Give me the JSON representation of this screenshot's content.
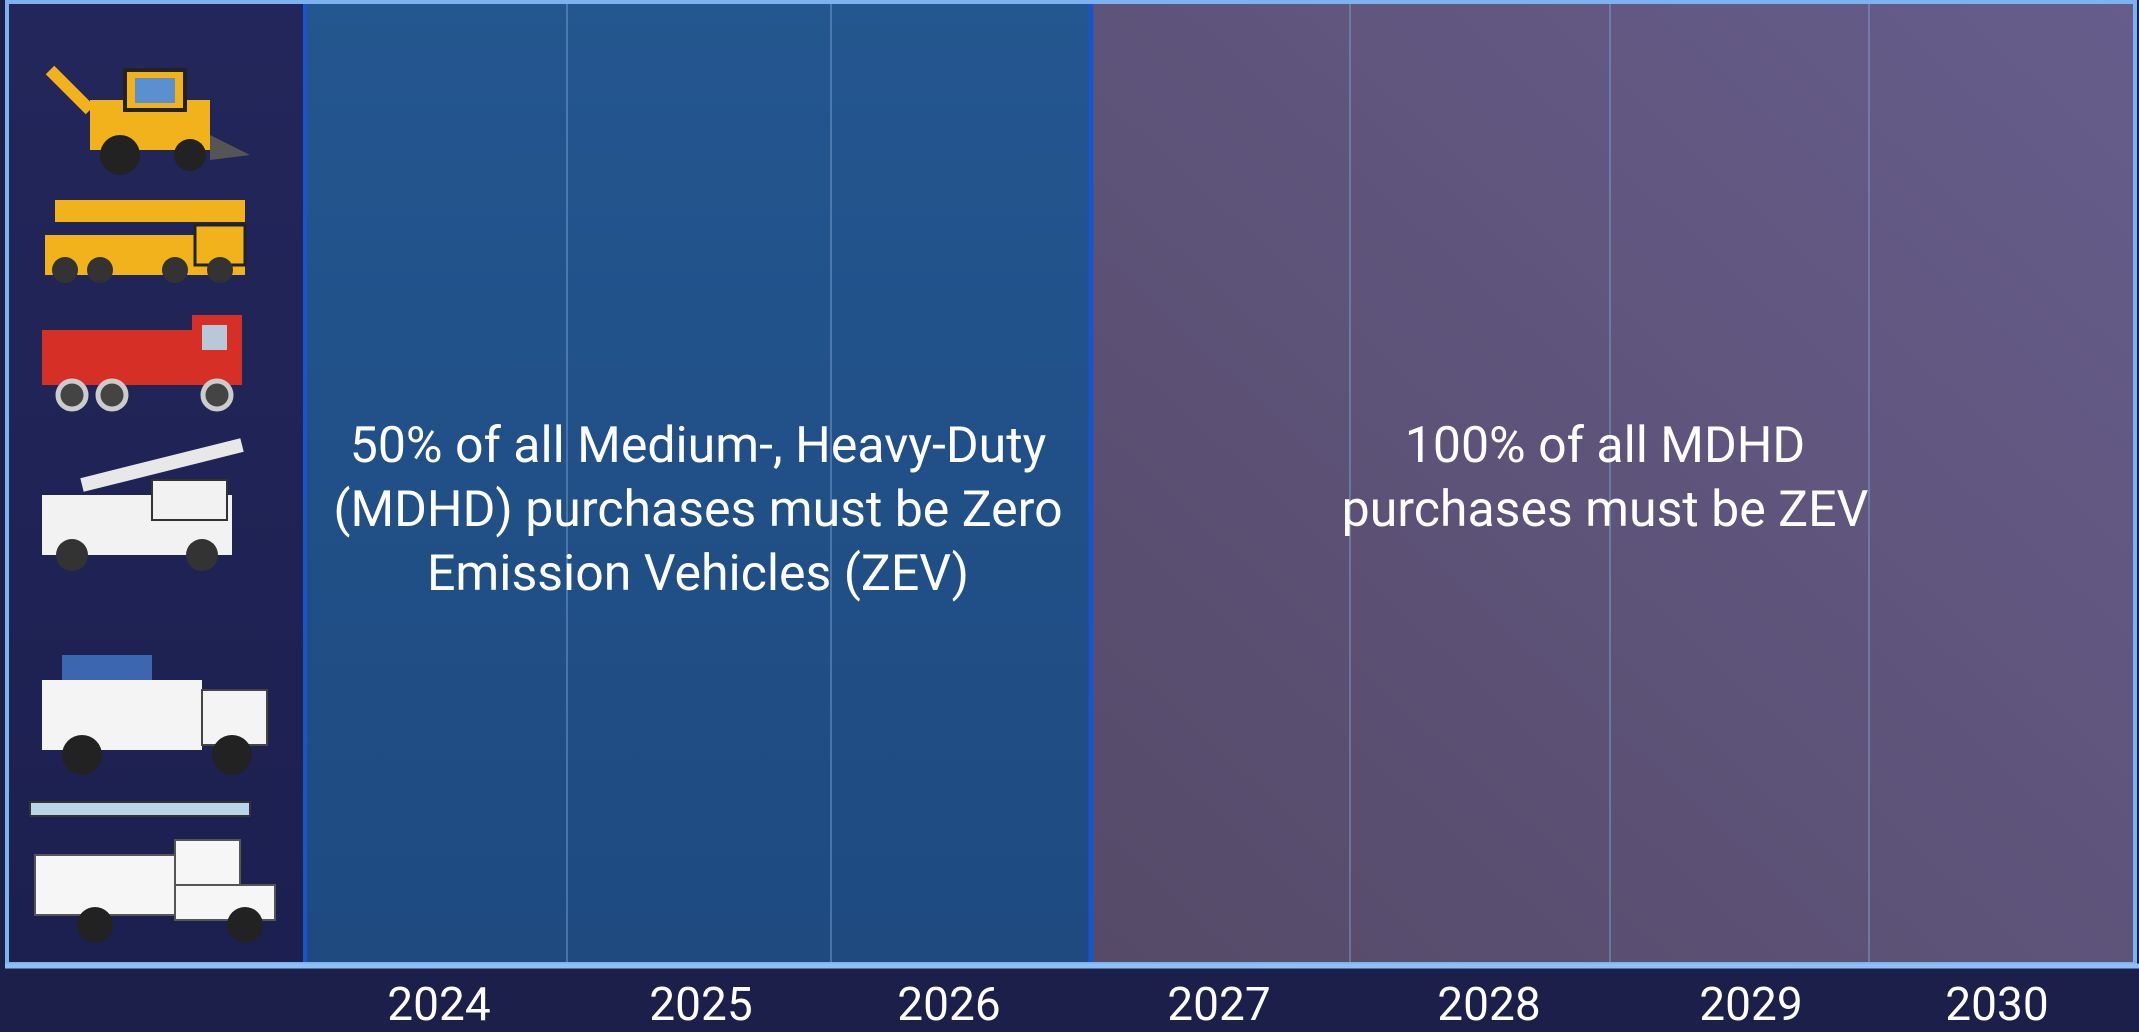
{
  "timeline": {
    "years": [
      "2024",
      "2025",
      "2026",
      "2027",
      "2028",
      "2029",
      "2030"
    ],
    "phases": [
      {
        "text": "50% of all Medium-, Heavy-Duty (MDHD) purchases must be Zero Emission Vehicles (ZEV)"
      },
      {
        "text": "100% of all MDHD purchases must be ZEV"
      }
    ]
  }
}
